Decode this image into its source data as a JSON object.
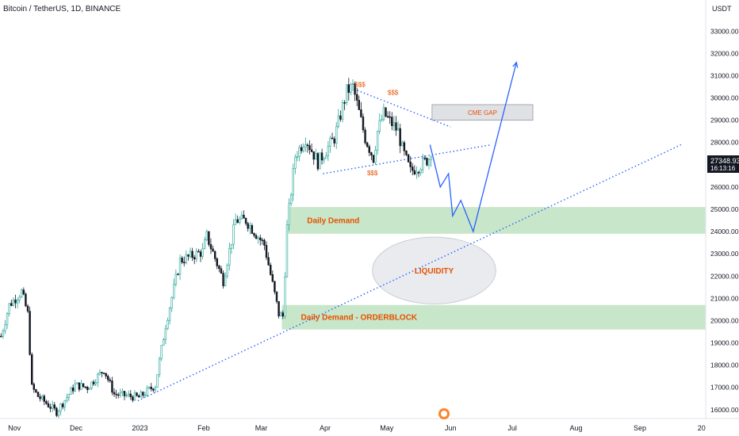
{
  "chart_title": "Bitcoin / TetherUS, 1D, BINANCE",
  "price_unit": "USDT",
  "current_price": {
    "value": "27348.93",
    "countdown": "16:13:16"
  },
  "colors": {
    "up": "#26a69a",
    "down": "#131722",
    "demand": "#c8e6c9",
    "liquidity": "#e9ebef",
    "annotation": "#e65100",
    "path": "#2962ff",
    "label_bg": "#131722"
  },
  "chart_data": {
    "type": "candlestick",
    "title": "Bitcoin / TetherUS, 1D, BINANCE",
    "xlabel": "",
    "ylabel": "USDT",
    "x_axis": {
      "start": "2022-10-25",
      "end": "2023-10-03",
      "labels": [
        {
          "date": "2022-11-01",
          "label": "Nov"
        },
        {
          "date": "2022-12-01",
          "label": "Dec"
        },
        {
          "date": "2023-01-01",
          "label": "2023"
        },
        {
          "date": "2023-02-01",
          "label": "Feb"
        },
        {
          "date": "2023-03-01",
          "label": "Mar"
        },
        {
          "date": "2023-04-01",
          "label": "Apr"
        },
        {
          "date": "2023-05-01",
          "label": "May"
        },
        {
          "date": "2023-06-01",
          "label": "Jun"
        },
        {
          "date": "2023-07-01",
          "label": "Jul"
        },
        {
          "date": "2023-08-01",
          "label": "Aug"
        },
        {
          "date": "2023-09-01",
          "label": "Sep"
        },
        {
          "date": "2023-10-01",
          "label": "20"
        }
      ]
    },
    "y_axis": {
      "range": [
        15600,
        34400
      ],
      "ticks": [
        16000,
        17000,
        18000,
        19000,
        20000,
        21000,
        22000,
        23000,
        24000,
        25000,
        26000,
        27000,
        28000,
        29000,
        30000,
        31000,
        32000,
        33000,
        34000
      ]
    },
    "price_path": [
      [
        "2022-10-25",
        19300
      ],
      [
        "2022-10-29",
        20700
      ],
      [
        "2022-11-04",
        21300
      ],
      [
        "2022-11-07",
        20300
      ],
      [
        "2022-11-09",
        17000
      ],
      [
        "2022-11-12",
        16600
      ],
      [
        "2022-11-21",
        15900
      ],
      [
        "2022-11-30",
        17100
      ],
      [
        "2022-12-06",
        17000
      ],
      [
        "2022-12-14",
        17800
      ],
      [
        "2022-12-19",
        16700
      ],
      [
        "2022-12-31",
        16550
      ],
      [
        "2023-01-08",
        17100
      ],
      [
        "2023-01-13",
        19800
      ],
      [
        "2023-01-20",
        22700
      ],
      [
        "2023-01-31",
        23100
      ],
      [
        "2023-02-02",
        23800
      ],
      [
        "2023-02-10",
        21800
      ],
      [
        "2023-02-16",
        24500
      ],
      [
        "2023-02-21",
        24500
      ],
      [
        "2023-03-02",
        23400
      ],
      [
        "2023-03-09",
        20300
      ],
      [
        "2023-03-11",
        20200
      ],
      [
        "2023-03-13",
        24200
      ],
      [
        "2023-03-17",
        27400
      ],
      [
        "2023-03-22",
        28200
      ],
      [
        "2023-03-28",
        27100
      ],
      [
        "2023-04-05",
        28200
      ],
      [
        "2023-04-11",
        30300
      ],
      [
        "2023-04-14",
        30500
      ],
      [
        "2023-04-20",
        28200
      ],
      [
        "2023-04-24",
        27300
      ],
      [
        "2023-04-26",
        28500
      ],
      [
        "2023-04-29",
        29300
      ],
      [
        "2023-05-06",
        28500
      ],
      [
        "2023-05-08",
        27700
      ],
      [
        "2023-05-12",
        26700
      ],
      [
        "2023-05-17",
        27000
      ],
      [
        "2023-05-22",
        27348.93
      ]
    ],
    "projection": [
      [
        "2023-05-22",
        27900
      ],
      [
        "2023-05-27",
        26000
      ],
      [
        "2023-05-31",
        26600
      ],
      [
        "2023-06-02",
        24700
      ],
      [
        "2023-06-06",
        25400
      ],
      [
        "2023-06-12",
        24000
      ],
      [
        "2023-07-03",
        31600
      ]
    ],
    "trendlines": [
      {
        "style": "dotted",
        "from": [
          "2022-12-31",
          16400
        ],
        "to": [
          "2023-09-21",
          27900
        ]
      },
      {
        "style": "dotted",
        "from": [
          "2023-04-15",
          30400
        ],
        "to": [
          "2023-06-01",
          28700
        ]
      },
      {
        "style": "dotted",
        "from": [
          "2023-03-31",
          26600
        ],
        "to": [
          "2023-06-21",
          27900
        ]
      }
    ],
    "zones": [
      {
        "name": "daily-demand",
        "label": "Daily Demand",
        "from": "2023-03-14",
        "y": [
          23900,
          25100
        ]
      },
      {
        "name": "daily-demand-orderblock",
        "label": "Daily Demand - ORDERBLOCK",
        "from": "2023-03-11",
        "y": [
          19600,
          20700
        ]
      }
    ],
    "boxes": [
      {
        "name": "cme-gap",
        "label": "CME GAP",
        "x": [
          "2023-05-23",
          "2023-07-11"
        ],
        "y": [
          29000,
          29700
        ]
      }
    ],
    "ellipses": [
      {
        "name": "liquidity",
        "label": "LIQUIDITY",
        "cx": "2023-05-24",
        "cy": 22250,
        "rx_days": 30,
        "ry": 1500
      }
    ],
    "annotations": [
      {
        "text": "$$$",
        "x": "2023-04-18",
        "y": 30500
      },
      {
        "text": "$$$",
        "x": "2023-05-04",
        "y": 30150
      },
      {
        "text": "$$$",
        "x": "2023-04-24",
        "y": 26530
      }
    ]
  }
}
